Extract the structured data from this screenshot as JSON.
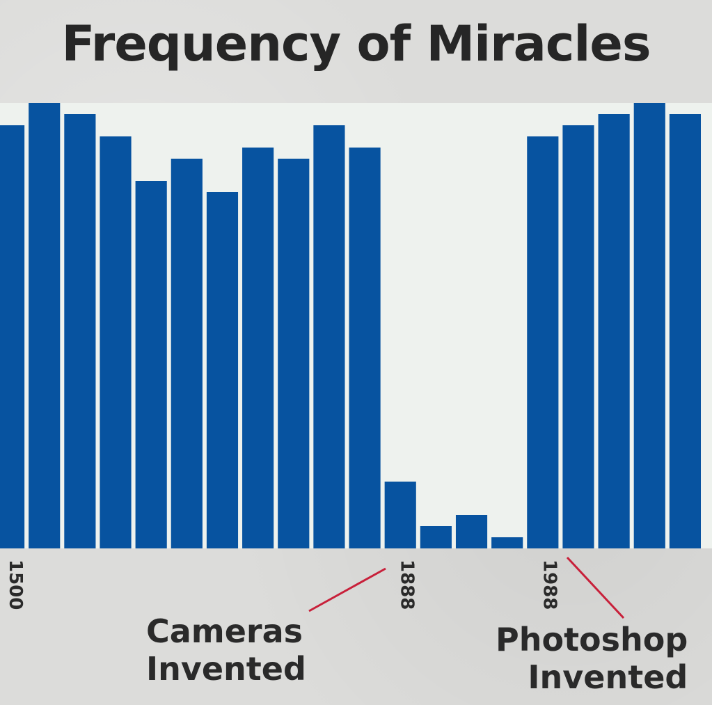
{
  "chart_data": {
    "type": "bar",
    "title": "Frequency of Miracles",
    "values": [
      95,
      100,
      97.5,
      92.5,
      82.5,
      87.5,
      80,
      90,
      87.5,
      95,
      90,
      15,
      5,
      7.5,
      2.5,
      92.5,
      95,
      97.5,
      100,
      97.5
    ],
    "ylim": [
      0,
      100
    ],
    "tick_labels": [
      {
        "text": "1500",
        "bar_index": 0
      },
      {
        "text": "1888",
        "bar_index": 11
      },
      {
        "text": "1988",
        "bar_index": 15
      }
    ],
    "annotations": [
      {
        "id": "cameras",
        "lines": [
          "Cameras",
          "Invented"
        ],
        "target_tick": "1888"
      },
      {
        "id": "photoshop",
        "lines": [
          "Photoshop",
          "Invented"
        ],
        "target_tick": "1988"
      }
    ],
    "grid": false,
    "legend": "none",
    "colors": {
      "bar": "#0753a0",
      "plot_background": "#eef2ee",
      "annotation_line": "#c8203a",
      "text": "#262626"
    }
  }
}
